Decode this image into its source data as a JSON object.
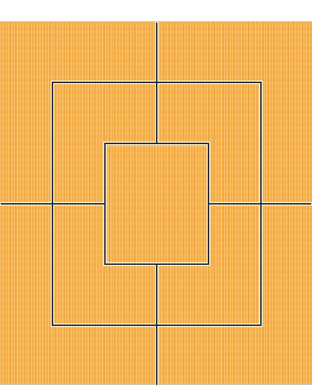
{
  "board": {
    "colors": {
      "wood": "#f5ad45",
      "line": "#1e2b3a",
      "line_halo": "#fff3d6"
    }
  }
}
